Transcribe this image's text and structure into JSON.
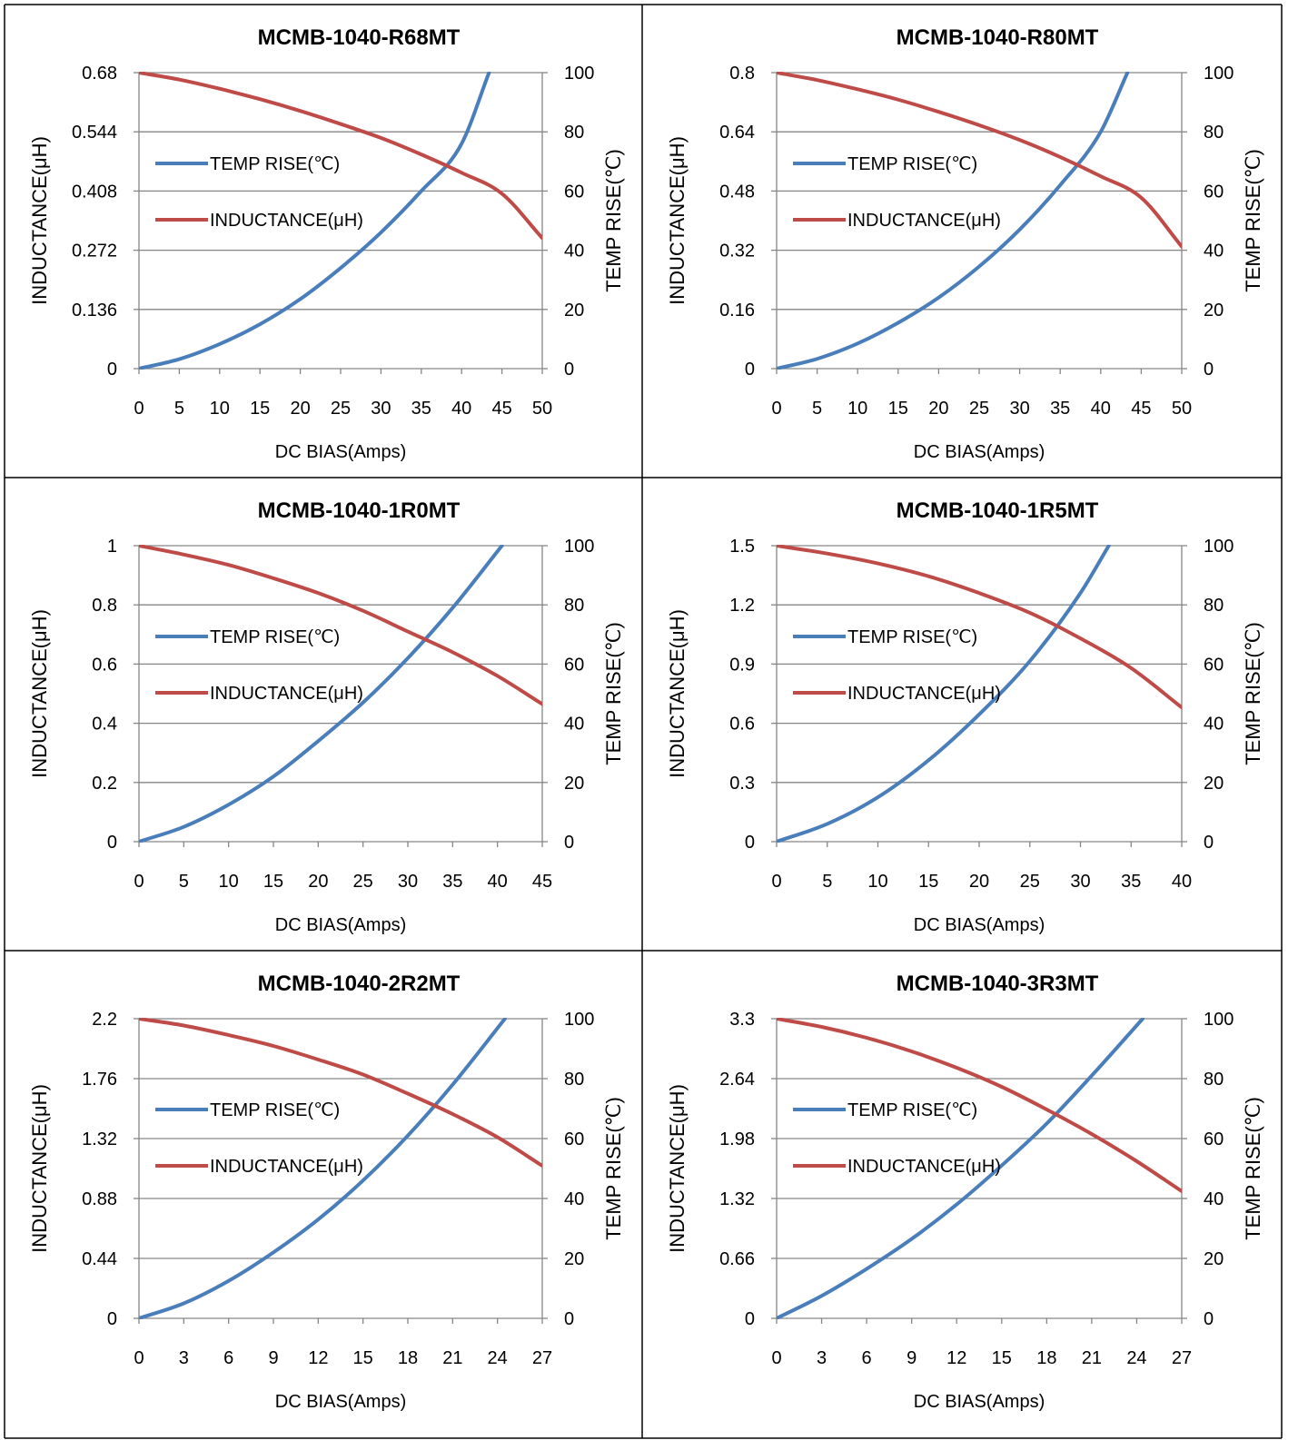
{
  "colors": {
    "temp": "#4A7EBB",
    "inductance": "#BE4B48",
    "grid": "#868686",
    "border": "#000000"
  },
  "chart_data": [
    {
      "type": "line",
      "title": "MCMB-1040-R68MT",
      "xlabel": "DC  BIAS(Amps)",
      "ylabel_left": "INDUCTANCE(μH)",
      "ylabel_right": "TEMP RISE(℃)",
      "x_ticks": [
        "0",
        "5",
        "10",
        "15",
        "20",
        "25",
        "30",
        "35",
        "40",
        "45",
        "50"
      ],
      "xlim": [
        0,
        50
      ],
      "y_left_ticks": [
        "0",
        "0.136",
        "0.272",
        "0.408",
        "0.544",
        "0.68"
      ],
      "y_left_lim": [
        0,
        0.68
      ],
      "y_right_ticks": [
        "0",
        "20",
        "40",
        "60",
        "80",
        "100"
      ],
      "y_right_lim": [
        0,
        100
      ],
      "legend": [
        "TEMP RISE(℃)",
        "INDUCTANCE(μH)"
      ],
      "series": [
        {
          "name": "TEMP RISE(℃)",
          "axis": "right",
          "x": [
            0,
            5,
            10,
            15,
            20,
            25,
            30,
            35,
            40,
            43.4
          ],
          "y": [
            0,
            3.2,
            8.3,
            15,
            23.5,
            34,
            46,
            60,
            76,
            100
          ]
        },
        {
          "name": "INDUCTANCE(μH)",
          "axis": "left",
          "x": [
            0,
            5,
            10,
            15,
            20,
            25,
            30,
            35,
            40,
            45,
            50
          ],
          "y": [
            0.68,
            0.664,
            0.643,
            0.619,
            0.592,
            0.562,
            0.53,
            0.492,
            0.45,
            0.402,
            0.3
          ]
        }
      ]
    },
    {
      "type": "line",
      "title": "MCMB-1040-R80MT",
      "xlabel": "DC  BIAS(Amps)",
      "ylabel_left": "INDUCTANCE(μH)",
      "ylabel_right": "TEMP RISE(℃)",
      "x_ticks": [
        "0",
        "5",
        "10",
        "15",
        "20",
        "25",
        "30",
        "35",
        "40",
        "45",
        "50"
      ],
      "xlim": [
        0,
        50
      ],
      "y_left_ticks": [
        "0",
        "0.16",
        "0.32",
        "0.48",
        "0.64",
        "0.8"
      ],
      "y_left_lim": [
        0,
        0.8
      ],
      "y_right_ticks": [
        "0",
        "20",
        "40",
        "60",
        "80",
        "100"
      ],
      "y_right_lim": [
        0,
        100
      ],
      "legend": [
        "TEMP RISE(℃)",
        "INDUCTANCE(μH)"
      ],
      "series": [
        {
          "name": "TEMP RISE(℃)",
          "axis": "right",
          "x": [
            0,
            5,
            10,
            15,
            20,
            25,
            30,
            35,
            40,
            43.3
          ],
          "y": [
            0,
            3.3,
            8.5,
            15.5,
            24,
            34.5,
            47,
            62,
            80,
            100
          ]
        },
        {
          "name": "INDUCTANCE(μH)",
          "axis": "left",
          "x": [
            0,
            5,
            10,
            15,
            20,
            25,
            30,
            35,
            40,
            45,
            50
          ],
          "y": [
            0.8,
            0.78,
            0.755,
            0.727,
            0.694,
            0.658,
            0.618,
            0.572,
            0.52,
            0.462,
            0.33
          ]
        }
      ]
    },
    {
      "type": "line",
      "title": "MCMB-1040-1R0MT",
      "xlabel": "DC  BIAS(Amps)",
      "ylabel_left": "INDUCTANCE(μH)",
      "ylabel_right": "TEMP RISE(℃)",
      "x_ticks": [
        "0",
        "5",
        "10",
        "15",
        "20",
        "25",
        "30",
        "35",
        "40",
        "45"
      ],
      "xlim": [
        0,
        45
      ],
      "y_left_ticks": [
        "0",
        "0.2",
        "0.4",
        "0.6",
        "0.8",
        "1"
      ],
      "y_left_lim": [
        0,
        1
      ],
      "y_right_ticks": [
        "0",
        "20",
        "40",
        "60",
        "80",
        "100"
      ],
      "y_right_lim": [
        0,
        100
      ],
      "legend": [
        "TEMP RISE(℃)",
        "INDUCTANCE(μH)"
      ],
      "series": [
        {
          "name": "TEMP RISE(℃)",
          "axis": "right",
          "x": [
            0,
            5,
            10,
            15,
            20,
            25,
            30,
            35,
            40.5
          ],
          "y": [
            0,
            5,
            12.5,
            22,
            34,
            47,
            62,
            79,
            100
          ]
        },
        {
          "name": "INDUCTANCE(μH)",
          "axis": "left",
          "x": [
            0,
            5,
            10,
            15,
            20,
            25,
            30,
            35,
            40,
            45
          ],
          "y": [
            1,
            0.97,
            0.935,
            0.89,
            0.84,
            0.78,
            0.71,
            0.64,
            0.56,
            0.465
          ]
        }
      ]
    },
    {
      "type": "line",
      "title": "MCMB-1040-1R5MT",
      "xlabel": "DC  BIAS(Amps)",
      "ylabel_left": "INDUCTANCE(μH)",
      "ylabel_right": "TEMP RISE(℃)",
      "x_ticks": [
        "0",
        "5",
        "10",
        "15",
        "20",
        "25",
        "30",
        "35",
        "40"
      ],
      "xlim": [
        0,
        40
      ],
      "y_left_ticks": [
        "0",
        "0.3",
        "0.6",
        "0.9",
        "1.2",
        "1.5"
      ],
      "y_left_lim": [
        0,
        1.5
      ],
      "y_right_ticks": [
        "0",
        "20",
        "40",
        "60",
        "80",
        "100"
      ],
      "y_right_lim": [
        0,
        100
      ],
      "legend": [
        "TEMP RISE(℃)",
        "INDUCTANCE(μH)"
      ],
      "series": [
        {
          "name": "TEMP RISE(℃)",
          "axis": "right",
          "x": [
            0,
            5,
            10,
            15,
            20,
            25,
            30,
            32.8
          ],
          "y": [
            0,
            6,
            15,
            27.5,
            43,
            61,
            84,
            100
          ]
        },
        {
          "name": "INDUCTANCE(μH)",
          "axis": "left",
          "x": [
            0,
            5,
            10,
            15,
            20,
            25,
            30,
            35,
            40
          ],
          "y": [
            1.5,
            1.46,
            1.41,
            1.345,
            1.26,
            1.16,
            1.03,
            0.88,
            0.68
          ]
        }
      ]
    },
    {
      "type": "line",
      "title": "MCMB-1040-2R2MT",
      "xlabel": "DC  BIAS(Amps)",
      "ylabel_left": "INDUCTANCE(μH)",
      "ylabel_right": "TEMP RISE(℃)",
      "x_ticks": [
        "0",
        "3",
        "6",
        "9",
        "12",
        "15",
        "18",
        "21",
        "24",
        "27"
      ],
      "xlim": [
        0,
        27
      ],
      "y_left_ticks": [
        "0",
        "0.44",
        "0.88",
        "1.32",
        "1.76",
        "2.2"
      ],
      "y_left_lim": [
        0,
        2.2
      ],
      "y_right_ticks": [
        "0",
        "20",
        "40",
        "60",
        "80",
        "100"
      ],
      "y_right_lim": [
        0,
        100
      ],
      "legend": [
        "TEMP RISE(℃)",
        "INDUCTANCE(μH)"
      ],
      "series": [
        {
          "name": "TEMP RISE(℃)",
          "axis": "right",
          "x": [
            0,
            3,
            6,
            9,
            12,
            15,
            18,
            21,
            24.5
          ],
          "y": [
            0,
            5,
            12.5,
            22,
            33,
            46,
            61,
            78,
            100
          ]
        },
        {
          "name": "INDUCTANCE(μH)",
          "axis": "left",
          "x": [
            0,
            3,
            6,
            9,
            12,
            15,
            18,
            21,
            24,
            27
          ],
          "y": [
            2.2,
            2.15,
            2.08,
            2,
            1.9,
            1.79,
            1.65,
            1.5,
            1.33,
            1.12
          ]
        }
      ]
    },
    {
      "type": "line",
      "title": "MCMB-1040-3R3MT",
      "xlabel": "DC  BIAS(Amps)",
      "ylabel_left": "INDUCTANCE(μH)",
      "ylabel_right": "TEMP RISE(℃)",
      "x_ticks": [
        "0",
        "3",
        "6",
        "9",
        "12",
        "15",
        "18",
        "21",
        "24",
        "27"
      ],
      "xlim": [
        0,
        27
      ],
      "y_left_ticks": [
        "0",
        "0.66",
        "1.32",
        "1.98",
        "2.64",
        "3.3"
      ],
      "y_left_lim": [
        0,
        3.3
      ],
      "y_right_ticks": [
        "0",
        "20",
        "40",
        "60",
        "80",
        "100"
      ],
      "y_right_lim": [
        0,
        100
      ],
      "legend": [
        "TEMP RISE(℃)",
        "INDUCTANCE(μH)"
      ],
      "series": [
        {
          "name": "TEMP RISE(℃)",
          "axis": "right",
          "x": [
            0,
            3,
            6,
            9,
            12,
            15,
            18,
            21,
            24.4
          ],
          "y": [
            0,
            7.5,
            16.5,
            26.5,
            38,
            51,
            65,
            81,
            100
          ]
        },
        {
          "name": "INDUCTANCE(μH)",
          "axis": "left",
          "x": [
            0,
            3,
            6,
            9,
            12,
            15,
            18,
            21,
            24,
            27
          ],
          "y": [
            3.3,
            3.21,
            3.09,
            2.94,
            2.76,
            2.55,
            2.3,
            2.03,
            1.73,
            1.4
          ]
        }
      ]
    }
  ]
}
